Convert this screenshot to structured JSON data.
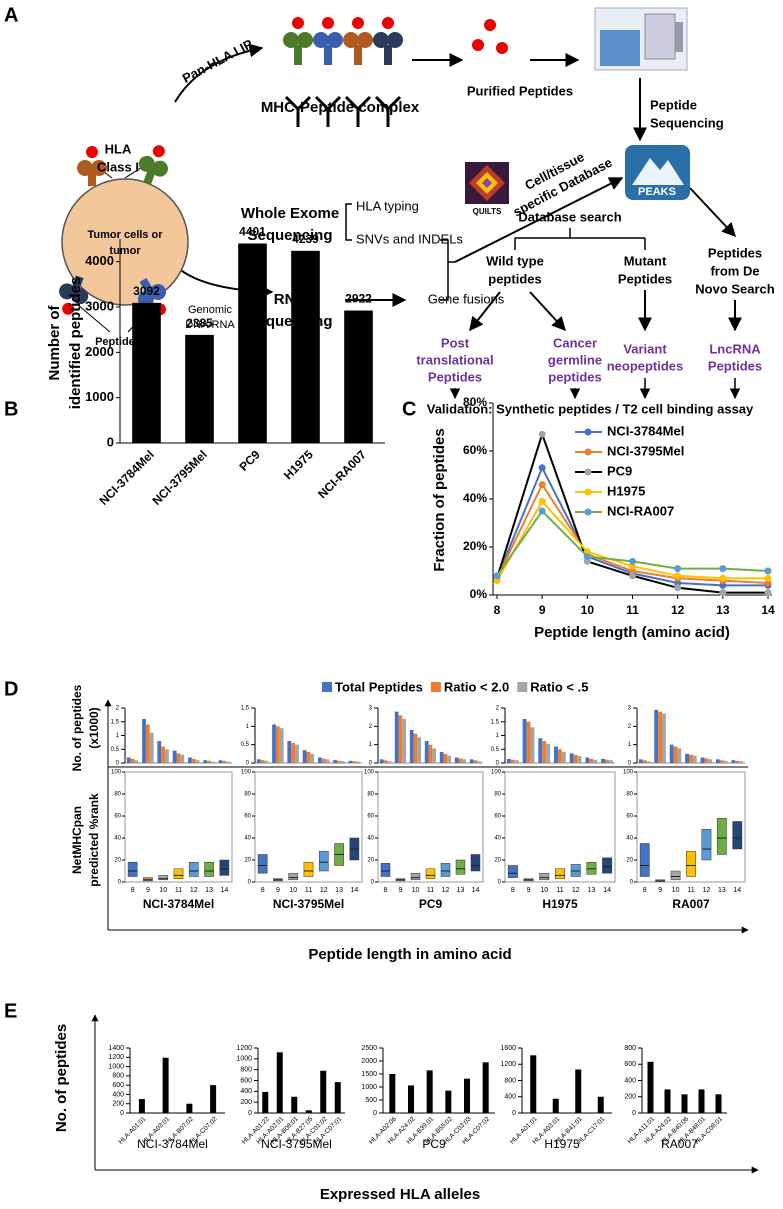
{
  "panel_a": {
    "label": "A",
    "pan_hla": "Pan-HLA I IP",
    "mhc_complex": "MHC-Peptide complex",
    "purified": "Purified Peptides",
    "sequencing": [
      "Peptide",
      "Sequencing"
    ],
    "hla_class": [
      "HLA",
      "Class I"
    ],
    "tumor": [
      "Tumor cells or",
      "tumor"
    ],
    "peptides": "Peptides",
    "genomic": [
      "Genomic",
      "DNA/RNA"
    ],
    "wes": [
      "Whole Exome",
      "Sequencing"
    ],
    "hla_typing": "HLA typing",
    "snv": "SNVs and INDELs",
    "rna": [
      "RNA",
      "Sequencing"
    ],
    "fusions": "Gene fusions",
    "quilts": "QUILTS",
    "db": [
      "Cell/tissue",
      "specific Database"
    ],
    "peaks": "PEAKS",
    "db_search": "Database search",
    "wild": [
      "Wild type",
      "peptides"
    ],
    "mutant": [
      "Mutant",
      "Peptides"
    ],
    "denovo": [
      "Peptides",
      "from De",
      "Novo Search"
    ],
    "ptm": [
      "Post",
      "translational",
      "Peptides"
    ],
    "cgp": [
      "Cancer",
      "germline",
      "peptides"
    ],
    "neo": [
      "Variant",
      "neopeptides"
    ],
    "lnc": [
      "LncRNA",
      "Peptides"
    ],
    "validation": "Validation: Synthetic peptides / T2 cell binding assay"
  },
  "chart_data": [
    {
      "type": "bar",
      "panel": "B",
      "ylabel": [
        "Number of",
        "identified peptides"
      ],
      "categories": [
        "NCI-3784Mel",
        "NCI-3795Mel",
        "PC9",
        "H1975",
        "NCI-RA007"
      ],
      "values": [
        3092,
        2385,
        4401,
        4239,
        2922
      ],
      "color": "#000000",
      "ylim": [
        0,
        4500
      ],
      "yticks": [
        0,
        1000,
        2000,
        3000,
        4000
      ]
    },
    {
      "type": "line",
      "panel": "C",
      "ylabel": "Fraction of peptides",
      "xlabel": "Peptide length (amino acid)",
      "x": [
        8,
        9,
        10,
        11,
        12,
        13,
        14
      ],
      "xlim": [
        8,
        14
      ],
      "xticks": [
        8,
        9,
        10,
        11,
        12,
        13,
        14
      ],
      "ylim": [
        0,
        80
      ],
      "yticks": [
        {
          "value": 0,
          "label": "0%"
        },
        {
          "value": 20,
          "label": "20%"
        },
        {
          "value": 40,
          "label": "40%"
        },
        {
          "value": 60,
          "label": "60%"
        },
        {
          "value": 80,
          "label": "80%"
        }
      ],
      "series": [
        {
          "name": "NCI-3784Mel",
          "color": "#4472c4",
          "marker_color": "#4472c4",
          "values": [
            7,
            53,
            16,
            9,
            5,
            4,
            4
          ]
        },
        {
          "name": "NCI-3795Mel",
          "color": "#ed7d31",
          "marker_color": "#ed7d31",
          "values": [
            7,
            46,
            17,
            10,
            7,
            6,
            5
          ]
        },
        {
          "name": "PC9",
          "color": "#000000",
          "marker_color": "#a5a5a5",
          "values": [
            7,
            67,
            14,
            8,
            3,
            1,
            1
          ]
        },
        {
          "name": "H1975",
          "color": "#ffc000",
          "marker_color": "#ffc000",
          "values": [
            6,
            39,
            18,
            12,
            8,
            7,
            7
          ]
        },
        {
          "name": "NCI-RA007",
          "color": "#70ad47",
          "marker_color": "#5b9bd5",
          "values": [
            8,
            35,
            16,
            14,
            11,
            11,
            10
          ]
        }
      ]
    },
    {
      "type": "bar_box",
      "panel": "D",
      "bar_ylabel": [
        "No. of peptides",
        "(x1000)"
      ],
      "box_ylabel": [
        "NetMHCpan",
        "predicted %rank"
      ],
      "xlabel": "Peptide length in amino acid",
      "series": [
        {
          "name": "Total Peptides",
          "color": "#4472c4"
        },
        {
          "name": "Ratio < 2.0",
          "color": "#ed7d31"
        },
        {
          "name": "Ratio < .5",
          "color": "#a5a5a5"
        }
      ],
      "categories": [
        "8",
        "9",
        "10",
        "11",
        "12",
        "13",
        "14"
      ],
      "box_colors": [
        "#4472c4",
        "#ed7d31",
        "#a5a5a5",
        "#ffc000",
        "#5b9bd5",
        "#70ad47",
        "#264478"
      ],
      "box_ylim": [
        0,
        100
      ],
      "box_yticks": [
        0,
        20,
        40,
        60,
        80,
        100
      ],
      "panels": [
        {
          "name": "NCI-3784Mel",
          "bar_ylim": [
            0,
            2
          ],
          "bar_yticks": [
            0,
            0.5,
            1,
            1.5,
            2
          ],
          "bars": [
            [
              0.2,
              1.6,
              0.8,
              0.45,
              0.2,
              0.1,
              0.1
            ],
            [
              0.15,
              1.4,
              0.6,
              0.35,
              0.15,
              0.08,
              0.08
            ],
            [
              0.1,
              1.1,
              0.5,
              0.3,
              0.1,
              0.05,
              0.05
            ]
          ],
          "boxes": [
            [
              5,
              10,
              18
            ],
            [
              1,
              2,
              4
            ],
            [
              2,
              3,
              6
            ],
            [
              3,
              6,
              12
            ],
            [
              5,
              10,
              18
            ],
            [
              5,
              10,
              18
            ],
            [
              6,
              12,
              20
            ]
          ]
        },
        {
          "name": "NCI-3795Mel",
          "bar_ylim": [
            0,
            1.5
          ],
          "bar_yticks": [
            0,
            0.5,
            1,
            1.5
          ],
          "bars": [
            [
              0.1,
              1.05,
              0.6,
              0.35,
              0.15,
              0.08,
              0.06
            ],
            [
              0.08,
              1.0,
              0.55,
              0.3,
              0.12,
              0.06,
              0.05
            ],
            [
              0.06,
              0.95,
              0.5,
              0.25,
              0.1,
              0.05,
              0.04
            ]
          ],
          "boxes": [
            [
              8,
              15,
              25
            ],
            [
              1,
              2,
              3
            ],
            [
              2,
              4,
              8
            ],
            [
              5,
              10,
              18
            ],
            [
              10,
              18,
              28
            ],
            [
              15,
              25,
              35
            ],
            [
              20,
              30,
              40
            ]
          ]
        },
        {
          "name": "PC9",
          "bar_ylim": [
            0,
            3
          ],
          "bar_yticks": [
            0,
            1,
            2,
            3
          ],
          "bars": [
            [
              0.2,
              2.8,
              1.8,
              1.2,
              0.6,
              0.3,
              0.2
            ],
            [
              0.15,
              2.6,
              1.6,
              1.0,
              0.5,
              0.25,
              0.15
            ],
            [
              0.1,
              2.4,
              1.4,
              0.8,
              0.4,
              0.2,
              0.1
            ]
          ],
          "boxes": [
            [
              5,
              10,
              17
            ],
            [
              1,
              2,
              3
            ],
            [
              2,
              4,
              8
            ],
            [
              3,
              6,
              12
            ],
            [
              5,
              10,
              17
            ],
            [
              7,
              12,
              20
            ],
            [
              10,
              15,
              25
            ]
          ]
        },
        {
          "name": "H1975",
          "bar_ylim": [
            0,
            2
          ],
          "bar_yticks": [
            0,
            0.5,
            1,
            1.5,
            2
          ],
          "bars": [
            [
              0.15,
              1.6,
              0.9,
              0.6,
              0.35,
              0.2,
              0.15
            ],
            [
              0.12,
              1.5,
              0.8,
              0.5,
              0.3,
              0.15,
              0.12
            ],
            [
              0.1,
              1.3,
              0.7,
              0.4,
              0.25,
              0.12,
              0.1
            ]
          ],
          "boxes": [
            [
              4,
              8,
              15
            ],
            [
              1,
              2,
              3
            ],
            [
              2,
              4,
              8
            ],
            [
              3,
              6,
              12
            ],
            [
              5,
              10,
              16
            ],
            [
              7,
              12,
              18
            ],
            [
              8,
              14,
              22
            ]
          ]
        },
        {
          "name": "RA007",
          "bar_ylim": [
            0,
            3
          ],
          "bar_yticks": [
            0,
            1,
            2,
            3
          ],
          "bars": [
            [
              0.2,
              2.9,
              1.0,
              0.5,
              0.3,
              0.2,
              0.15
            ],
            [
              0.15,
              2.8,
              0.9,
              0.45,
              0.25,
              0.15,
              0.12
            ],
            [
              0.1,
              2.7,
              0.8,
              0.4,
              0.2,
              0.12,
              0.1
            ]
          ],
          "boxes": [
            [
              5,
              15,
              35
            ],
            [
              0.5,
              1,
              2
            ],
            [
              2,
              5,
              10
            ],
            [
              5,
              15,
              28
            ],
            [
              20,
              30,
              48
            ],
            [
              25,
              40,
              58
            ],
            [
              30,
              40,
              55
            ]
          ]
        }
      ]
    },
    {
      "type": "bar_panels",
      "panel": "E",
      "ylabel": "No. of peptides",
      "xlabel": "Expressed HLA alleles",
      "color": "#000000",
      "panels": [
        {
          "name": "NCI-3784Mel",
          "categories": [
            "HLA-A01:01",
            "HLA-A03:01",
            "HLA-B07:02",
            "HLA-C07:02"
          ],
          "values": [
            300,
            1190,
            200,
            600
          ],
          "ylim": [
            0,
            1400
          ],
          "yticks": [
            0,
            200,
            400,
            600,
            800,
            1000,
            1200,
            1400
          ]
        },
        {
          "name": "NCI-3795Mel",
          "categories": [
            "HLA-A01:22",
            "HLA-A02:01",
            "HLA-B08:01",
            "HLA-B27:05",
            "HLA-C01:02",
            "HLA-C07:01"
          ],
          "values": [
            390,
            1120,
            300,
            50,
            780,
            570
          ],
          "ylim": [
            0,
            1200
          ],
          "yticks": [
            0,
            200,
            400,
            600,
            800,
            1000,
            1200
          ]
        },
        {
          "name": "PC9",
          "categories": [
            "HLA-A02:06",
            "HLA-A24:02",
            "HLA-B39:01",
            "HLA-B55:02",
            "HLA-C03:03",
            "HLA-C07:02"
          ],
          "values": [
            1500,
            1060,
            1640,
            860,
            1320,
            1950
          ],
          "ylim": [
            0,
            2500
          ],
          "yticks": [
            0,
            500,
            1000,
            1500,
            2000,
            2500
          ]
        },
        {
          "name": "H1975",
          "categories": [
            "HLA-A01:01",
            "HLA-A03:01",
            "HLA-B41:01",
            "HLA-C17:01"
          ],
          "values": [
            1420,
            350,
            1070,
            400
          ],
          "ylim": [
            0,
            1600
          ],
          "yticks": [
            0,
            400,
            800,
            1200,
            1600
          ]
        },
        {
          "name": "RA007",
          "categories": [
            "HLA-A11:01",
            "HLA-A24:02",
            "HLA-B40:06",
            "HLA-B48:01",
            "HLA-C08:01"
          ],
          "values": [
            630,
            290,
            230,
            290,
            230
          ],
          "ylim": [
            0,
            800
          ],
          "yticks": [
            0,
            200,
            400,
            600,
            800
          ]
        }
      ]
    }
  ]
}
